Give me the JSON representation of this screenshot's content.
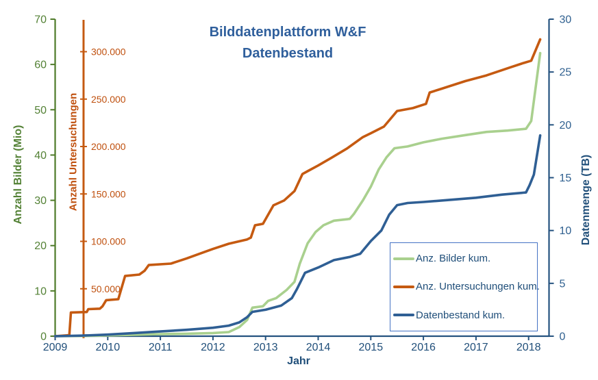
{
  "title": {
    "line1": "Bilddatenplattform W&F",
    "line2": "Datenbestand",
    "color": "#2f5f9c"
  },
  "chart_data": {
    "type": "line",
    "title": "Bilddatenplattform W&F Datenbestand",
    "grid": false,
    "x_axis": {
      "label": "Jahr",
      "ticks": [
        2009,
        2010,
        2011,
        2012,
        2013,
        2014,
        2015,
        2016,
        2017,
        2018
      ],
      "range": [
        2009,
        2018.4
      ],
      "color": "#24527f"
    },
    "axes": {
      "images": {
        "label": "Anzahl Bilder (Mio)",
        "side": "left",
        "range": [
          0,
          70
        ],
        "ticks": [
          0,
          10,
          20,
          30,
          40,
          50,
          60,
          70
        ],
        "color_line": "#4e7a28",
        "color_text": "#538135"
      },
      "exams": {
        "label": "Anzahl Untersuchungen",
        "side": "left-inner",
        "position_year": 2009.54,
        "range": [
          0,
          335000
        ],
        "ticks": [
          0,
          50000,
          100000,
          150000,
          200000,
          250000,
          300000
        ],
        "tick_labels": [
          "",
          "50.000",
          "100.000",
          "150.000",
          "200.000",
          "250.000",
          "300.000"
        ],
        "color_line": "#c55a11",
        "color_text": "#bf4f0d"
      },
      "tb": {
        "label": "Datenmenge (TB)",
        "side": "right",
        "range": [
          0,
          30
        ],
        "ticks": [
          0,
          5,
          10,
          15,
          20,
          25,
          30
        ],
        "color_line": "#24527f",
        "color_text": "#2e5f8f"
      }
    },
    "series": [
      {
        "name": "Anz. Bilder kum.",
        "axis": "images",
        "color": "#a9d08e",
        "points": [
          [
            2009.0,
            0
          ],
          [
            2009.5,
            0.05
          ],
          [
            2010.0,
            0.15
          ],
          [
            2010.5,
            0.3
          ],
          [
            2011.0,
            0.45
          ],
          [
            2011.5,
            0.55
          ],
          [
            2012.0,
            0.7
          ],
          [
            2012.3,
            0.9
          ],
          [
            2012.5,
            2.0
          ],
          [
            2012.65,
            3.6
          ],
          [
            2012.75,
            6.3
          ],
          [
            2012.95,
            6.6
          ],
          [
            2013.05,
            7.8
          ],
          [
            2013.2,
            8.4
          ],
          [
            2013.4,
            10.2
          ],
          [
            2013.55,
            12.0
          ],
          [
            2013.65,
            16.0
          ],
          [
            2013.8,
            20.5
          ],
          [
            2013.95,
            23.0
          ],
          [
            2014.1,
            24.5
          ],
          [
            2014.3,
            25.5
          ],
          [
            2014.6,
            25.9
          ],
          [
            2014.68,
            27.0
          ],
          [
            2014.85,
            30.0
          ],
          [
            2015.0,
            33.0
          ],
          [
            2015.15,
            36.8
          ],
          [
            2015.3,
            39.5
          ],
          [
            2015.45,
            41.5
          ],
          [
            2015.7,
            41.9
          ],
          [
            2016.0,
            42.8
          ],
          [
            2016.35,
            43.6
          ],
          [
            2016.8,
            44.4
          ],
          [
            2017.2,
            45.1
          ],
          [
            2017.6,
            45.4
          ],
          [
            2017.95,
            45.8
          ],
          [
            2018.05,
            47.5
          ],
          [
            2018.22,
            62.5
          ]
        ]
      },
      {
        "name": "Anz. Untersuchungen kum.",
        "axis": "exams",
        "color": "#c55a11",
        "points": [
          [
            2009.0,
            0
          ],
          [
            2009.27,
            1000
          ],
          [
            2009.3,
            25000
          ],
          [
            2009.6,
            25500
          ],
          [
            2009.63,
            28500
          ],
          [
            2009.85,
            29000
          ],
          [
            2009.9,
            31500
          ],
          [
            2009.97,
            38000
          ],
          [
            2010.2,
            39000
          ],
          [
            2010.33,
            63500
          ],
          [
            2010.6,
            65000
          ],
          [
            2010.7,
            69000
          ],
          [
            2010.78,
            75000
          ],
          [
            2011.2,
            76500
          ],
          [
            2011.5,
            82000
          ],
          [
            2011.85,
            89000
          ],
          [
            2012.0,
            92000
          ],
          [
            2012.3,
            97500
          ],
          [
            2012.65,
            102000
          ],
          [
            2012.72,
            104000
          ],
          [
            2012.8,
            117000
          ],
          [
            2012.95,
            118500
          ],
          [
            2013.15,
            138000
          ],
          [
            2013.35,
            143000
          ],
          [
            2013.55,
            153000
          ],
          [
            2013.7,
            171000
          ],
          [
            2013.8,
            174000
          ],
          [
            2014.0,
            180000
          ],
          [
            2014.25,
            188000
          ],
          [
            2014.55,
            198000
          ],
          [
            2014.85,
            210000
          ],
          [
            2015.0,
            214000
          ],
          [
            2015.25,
            221000
          ],
          [
            2015.5,
            237500
          ],
          [
            2015.8,
            240500
          ],
          [
            2016.05,
            245000
          ],
          [
            2016.12,
            257000
          ],
          [
            2016.35,
            261000
          ],
          [
            2016.8,
            269000
          ],
          [
            2017.2,
            275000
          ],
          [
            2017.65,
            283500
          ],
          [
            2017.9,
            288000
          ],
          [
            2018.05,
            290500
          ],
          [
            2018.22,
            313000
          ]
        ]
      },
      {
        "name": "Datenbestand kum.",
        "axis": "tb",
        "color": "#2f5f94",
        "points": [
          [
            2009.0,
            0
          ],
          [
            2009.5,
            0.05
          ],
          [
            2010.0,
            0.15
          ],
          [
            2010.5,
            0.3
          ],
          [
            2011.0,
            0.45
          ],
          [
            2011.5,
            0.6
          ],
          [
            2012.0,
            0.8
          ],
          [
            2012.3,
            1.0
          ],
          [
            2012.5,
            1.3
          ],
          [
            2012.65,
            1.8
          ],
          [
            2012.75,
            2.3
          ],
          [
            2013.0,
            2.5
          ],
          [
            2013.3,
            2.9
          ],
          [
            2013.5,
            3.6
          ],
          [
            2013.6,
            4.5
          ],
          [
            2013.75,
            6.0
          ],
          [
            2014.0,
            6.5
          ],
          [
            2014.3,
            7.2
          ],
          [
            2014.6,
            7.5
          ],
          [
            2014.8,
            7.8
          ],
          [
            2015.0,
            9.0
          ],
          [
            2015.2,
            10.0
          ],
          [
            2015.35,
            11.5
          ],
          [
            2015.5,
            12.4
          ],
          [
            2015.7,
            12.6
          ],
          [
            2016.0,
            12.7
          ],
          [
            2016.5,
            12.9
          ],
          [
            2017.0,
            13.1
          ],
          [
            2017.5,
            13.4
          ],
          [
            2017.95,
            13.6
          ],
          [
            2018.02,
            14.3
          ],
          [
            2018.1,
            15.3
          ],
          [
            2018.22,
            19.0
          ]
        ]
      }
    ],
    "legend": {
      "position": "inside-bottom-right",
      "border_color": "#4472c4",
      "text_color": "#1f4e79",
      "entries": [
        "Anz. Bilder kum.",
        "Anz. Untersuchungen kum.",
        "Datenbestand kum."
      ]
    }
  }
}
